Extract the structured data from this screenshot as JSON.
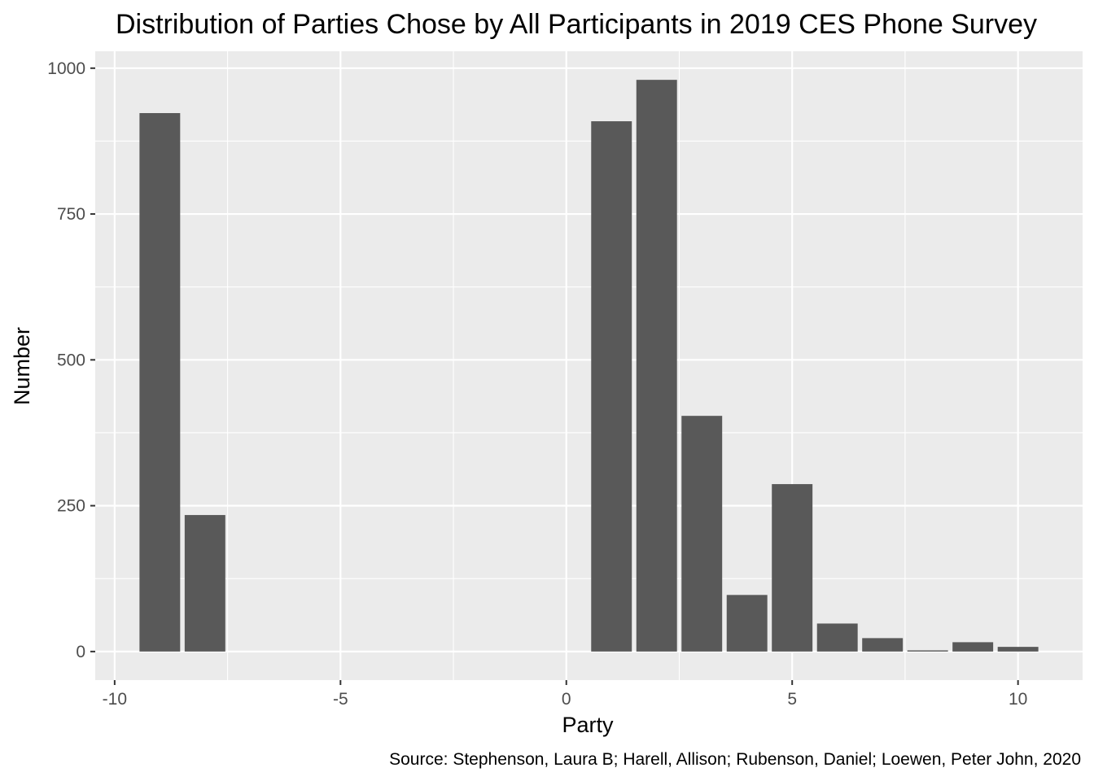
{
  "chart_data": {
    "type": "bar",
    "title": "Distribution of Parties Chose by All Participants in 2019 CES Phone Survey",
    "xlabel": "Party",
    "ylabel": "Number",
    "caption": "Source: Stephenson, Laura B; Harell, Allison; Rubenson, Daniel; Loewen, Peter John, 2020",
    "x": [
      -9,
      -8,
      1,
      2,
      3,
      4,
      5,
      6,
      7,
      8,
      9,
      10
    ],
    "values": [
      923,
      234,
      909,
      980,
      404,
      97,
      287,
      48,
      23,
      2,
      16,
      8
    ],
    "xlim": [
      -10.43,
      11.43
    ],
    "ylim": [
      -49,
      1029
    ],
    "x_ticks": [
      -10,
      -5,
      0,
      5,
      10
    ],
    "x_tick_labels": [
      "-10",
      "-5",
      "0",
      "5",
      "10"
    ],
    "y_ticks": [
      0,
      250,
      500,
      750,
      1000
    ],
    "y_tick_labels": [
      "0",
      "250",
      "500",
      "750",
      "1000"
    ],
    "grid": true,
    "legend": "none",
    "colors": {
      "bar": "#595959",
      "panel": "#ebebeb",
      "grid": "#ffffff",
      "tick_text": "#4d4d4d",
      "tick_mark": "#333333",
      "text": "#000000"
    }
  }
}
